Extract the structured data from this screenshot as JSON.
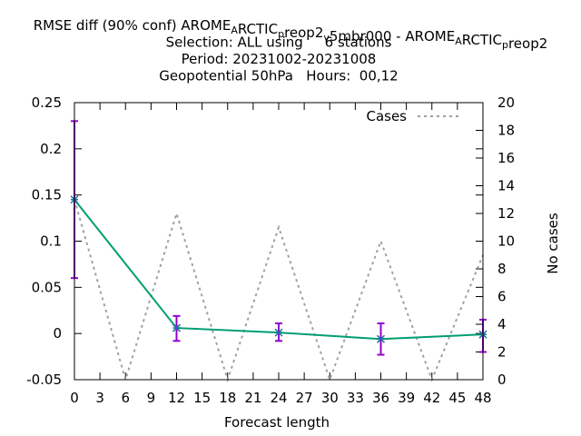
{
  "chart_data": {
    "type": "line",
    "title_lines": [
      "RMSE diff (90% conf) AROMEARCTICpreop2v5mbr000 - AROMEARCTICpreop2",
      "Selection: ALL using     6 stations",
      "Period: 20231002-20231008",
      "Geopotential 50hPa   Hours:  00,12"
    ],
    "title_line1_parts": [
      {
        "text": "RMSE diff (90% conf) AROME",
        "sub": false
      },
      {
        "text": "A",
        "sub": true
      },
      {
        "text": "RCTIC",
        "sub": false
      },
      {
        "text": "p",
        "sub": true
      },
      {
        "text": "reop2",
        "sub": false
      },
      {
        "text": "v",
        "sub": true
      },
      {
        "text": "5mbr000 - AROME",
        "sub": false
      },
      {
        "text": "A",
        "sub": true
      },
      {
        "text": "RCTIC",
        "sub": false
      },
      {
        "text": "p",
        "sub": true
      },
      {
        "text": "reop2",
        "sub": false
      }
    ],
    "xlabel": "Forecast length",
    "ylabel": "",
    "y2label": "No cases",
    "x_ticks": [
      0,
      3,
      6,
      9,
      12,
      15,
      18,
      21,
      24,
      27,
      30,
      33,
      36,
      39,
      42,
      45,
      48
    ],
    "y_ticks": [
      -0.05,
      0,
      0.05,
      0.1,
      0.15,
      0.2,
      0.25
    ],
    "y_tick_labels": [
      "-0.05",
      "0",
      "0.05",
      "0.1",
      "0.15",
      "0.2",
      "0.25"
    ],
    "y2_ticks": [
      0,
      2,
      4,
      6,
      8,
      10,
      12,
      14,
      16,
      18,
      20
    ],
    "xlim": [
      0,
      48
    ],
    "ylim": [
      -0.05,
      0.25
    ],
    "y2lim": [
      0,
      20
    ],
    "legend_position": "top-right",
    "series": [
      {
        "name": "",
        "style": "line-with-errorbars",
        "color": "#009e73",
        "errorbar_color": "#9400d3",
        "points": [
          {
            "x": 0,
            "y": 0.145,
            "low": 0.06,
            "high": 0.23
          },
          {
            "x": 12,
            "y": 0.006,
            "low": -0.008,
            "high": 0.019
          },
          {
            "x": 24,
            "y": 0.001,
            "low": -0.008,
            "high": 0.011
          },
          {
            "x": 36,
            "y": -0.006,
            "low": -0.023,
            "high": 0.011
          },
          {
            "x": 48,
            "y": -0.001,
            "low": -0.02,
            "high": 0.015
          }
        ]
      },
      {
        "name": "Cases",
        "style": "dashed",
        "axis": "y2",
        "color": "#a0a0a0",
        "x": [
          0,
          6,
          12,
          18,
          24,
          30,
          36,
          42,
          48
        ],
        "y": [
          13,
          0,
          12,
          0,
          11,
          0,
          10,
          0,
          9
        ]
      }
    ]
  }
}
